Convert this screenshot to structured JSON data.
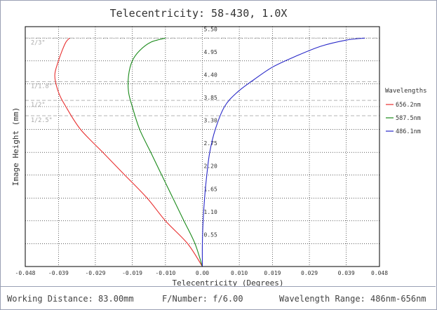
{
  "chart_data": {
    "type": "line",
    "title": "Telecentricity: 58-430, 1.0X",
    "xlabel": "Telecentricity (Degrees)",
    "ylabel": "Image Height (mm)",
    "xlim": [
      -0.048,
      0.048
    ],
    "ylim": [
      0,
      5.775
    ],
    "x_ticks": [
      -0.048,
      -0.039,
      -0.029,
      -0.019,
      -0.01,
      0.0,
      0.01,
      0.019,
      0.029,
      0.039,
      0.048
    ],
    "x_tick_labels": [
      "-0.048",
      "-0.039",
      "-0.029",
      "-0.019",
      "-0.010",
      "0.00",
      "0.010",
      "0.019",
      "0.029",
      "0.039",
      "0.048"
    ],
    "y_ticks": [
      0.55,
      1.1,
      1.65,
      2.2,
      2.75,
      3.3,
      3.85,
      4.4,
      4.95,
      5.5
    ],
    "y_tick_labels": [
      "0.55",
      "1.10",
      "1.65",
      "2.20",
      "2.75",
      "3.30",
      "3.85",
      "4.40",
      "4.95",
      "5.50"
    ],
    "grid": true,
    "legend_title": "Wavelengths",
    "legend_position": "right",
    "sensor_markers": [
      {
        "label": "2/3\"",
        "y": 5.5
      },
      {
        "label": "1/1.8\"",
        "y": 4.45
      },
      {
        "label": "1/2\"",
        "y": 4.0
      },
      {
        "label": "1/2.5\"",
        "y": 3.63
      }
    ],
    "series": [
      {
        "name": "656.2nm",
        "color": "#e83030",
        "x": [
          0.0,
          -0.004,
          -0.01,
          -0.015,
          -0.021,
          -0.027,
          -0.033,
          -0.037,
          -0.039,
          -0.04,
          -0.039,
          -0.038,
          -0.037,
          -0.036
        ],
        "y": [
          0.0,
          0.55,
          1.1,
          1.65,
          2.2,
          2.75,
          3.3,
          3.85,
          4.2,
          4.6,
          4.95,
          5.2,
          5.4,
          5.5
        ]
      },
      {
        "name": "587.5nm",
        "color": "#1a8a1a",
        "x": [
          0.0,
          -0.002,
          -0.005,
          -0.008,
          -0.011,
          -0.014,
          -0.017,
          -0.019,
          -0.02,
          -0.02,
          -0.019,
          -0.017,
          -0.014,
          -0.01
        ],
        "y": [
          0.0,
          0.55,
          1.1,
          1.65,
          2.2,
          2.75,
          3.3,
          3.85,
          4.2,
          4.6,
          4.95,
          5.2,
          5.4,
          5.5
        ]
      },
      {
        "name": "486.1nm",
        "color": "#2828c8",
        "x": [
          0.0,
          0.0,
          0.0002,
          0.0006,
          0.0012,
          0.002,
          0.0035,
          0.006,
          0.0095,
          0.014,
          0.019,
          0.025,
          0.032,
          0.039,
          0.044
        ],
        "y": [
          0.0,
          0.55,
          1.1,
          1.65,
          2.2,
          2.75,
          3.3,
          3.85,
          4.2,
          4.5,
          4.8,
          5.05,
          5.3,
          5.45,
          5.5
        ]
      }
    ]
  },
  "footer": {
    "working_distance": "Working Distance: 83.00mm",
    "f_number": "F/Number: f/6.00",
    "wavelength_range": "Wavelength Range: 486nm-656nm"
  }
}
